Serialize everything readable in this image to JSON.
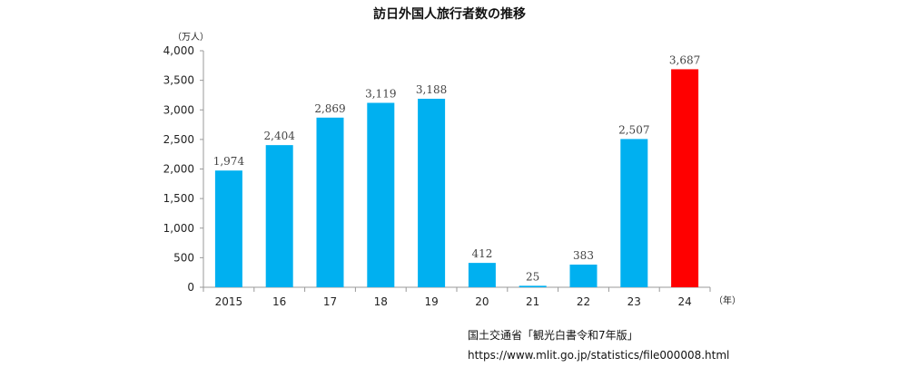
{
  "chart_data": {
    "type": "bar",
    "title": "訪日外国人旅行者数の推移",
    "y_unit": "（万人）",
    "x_unit": "（年）",
    "categories": [
      "2015",
      "16",
      "17",
      "18",
      "19",
      "20",
      "21",
      "22",
      "23",
      "24"
    ],
    "values": [
      1974,
      2404,
      2869,
      3119,
      3188,
      412,
      25,
      383,
      2507,
      3687
    ],
    "data_labels": [
      "1,974",
      "2,404",
      "2,869",
      "3,119",
      "3,188",
      "412",
      "25",
      "383",
      "2,507",
      "3,687"
    ],
    "ylim": [
      0,
      4000
    ],
    "yticks": [
      0,
      500,
      1000,
      1500,
      2000,
      2500,
      3000,
      3500,
      4000
    ],
    "ytick_labels": [
      "0",
      "500",
      "1,000",
      "1,500",
      "2,000",
      "2,500",
      "3,000",
      "3,500",
      "4,000"
    ],
    "grid": false,
    "colors": {
      "bar": "#00B0F0",
      "highlight_bar": "#FF0000",
      "axis": "#999999"
    },
    "highlight_category": "24"
  },
  "source": {
    "text": "国土交通省「観光白書令和7年版」",
    "url": "https://www.mlit.go.jp/statistics/file000008.html"
  }
}
